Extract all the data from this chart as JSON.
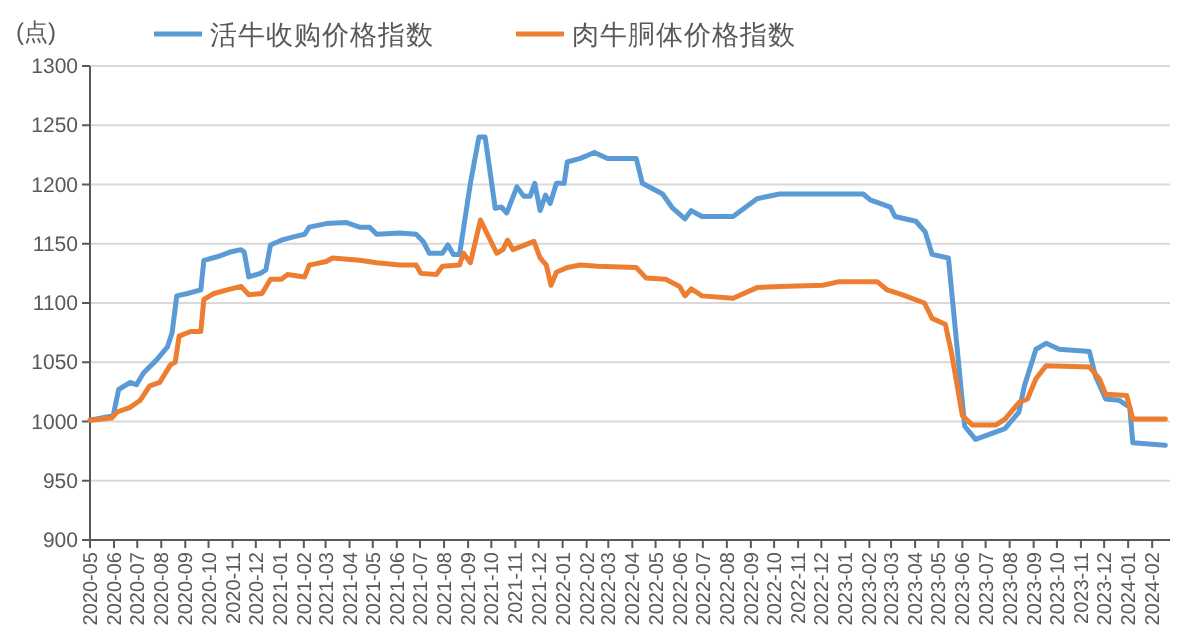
{
  "chart_data": {
    "type": "line",
    "ylabel": "(点)",
    "legend": "top",
    "grid": "y",
    "marker": "none",
    "line_style": "solid",
    "xlim": [
      "2020-05-01",
      "2024-02-24"
    ],
    "ylim": [
      900,
      1300
    ],
    "yticks": [
      900,
      950,
      1000,
      1050,
      1100,
      1150,
      1200,
      1250,
      1300
    ],
    "xticks": [
      "2020-05",
      "2020-06",
      "2020-07",
      "2020-08",
      "2020-09",
      "2020-10",
      "2020-11",
      "2020-12",
      "2021-01",
      "2021-02",
      "2021-03",
      "2021-04",
      "2021-05",
      "2021-06",
      "2021-07",
      "2021-08",
      "2021-09",
      "2021-10",
      "2021-11",
      "2021-12",
      "2022-01",
      "2022-02",
      "2022-03",
      "2022-04",
      "2022-05",
      "2022-06",
      "2022-07",
      "2022-08",
      "2022-09",
      "2022-10",
      "2022-11",
      "2022-12",
      "2023-01",
      "2023-02",
      "2023-03",
      "2023-04",
      "2023-05",
      "2023-06",
      "2023-07",
      "2023-08",
      "2023-09",
      "2023-10",
      "2023-11",
      "2023-12",
      "2024-01",
      "2024-02"
    ],
    "series": [
      {
        "name": "活牛收购价格指数",
        "color": "#5b9bd5",
        "x": [
          "2020-05-01",
          "2020-05-31",
          "2020-06-07",
          "2020-06-22",
          "2020-06-30",
          "2020-07-09",
          "2020-07-26",
          "2020-08-09",
          "2020-08-15",
          "2020-08-21",
          "2020-09-04",
          "2020-09-21",
          "2020-09-25",
          "2020-10-12",
          "2020-10-29",
          "2020-11-12",
          "2020-11-16",
          "2020-11-22",
          "2020-12-07",
          "2020-12-14",
          "2020-12-20",
          "2021-01-03",
          "2021-01-20",
          "2021-02-02",
          "2021-02-08",
          "2021-03-02",
          "2021-03-27",
          "2021-04-14",
          "2021-04-27",
          "2021-05-06",
          "2021-06-05",
          "2021-06-26",
          "2021-07-05",
          "2021-07-13",
          "2021-07-30",
          "2021-08-06",
          "2021-08-13",
          "2021-08-21",
          "2021-09-04",
          "2021-09-15",
          "2021-09-23",
          "2021-10-06",
          "2021-10-14",
          "2021-10-21",
          "2021-11-03",
          "2021-11-12",
          "2021-11-20",
          "2021-11-26",
          "2021-12-03",
          "2021-12-10",
          "2021-12-16",
          "2021-12-24",
          "2022-01-03",
          "2022-01-07",
          "2022-01-24",
          "2022-02-11",
          "2022-02-28",
          "2022-04-06",
          "2022-04-14",
          "2022-05-10",
          "2022-05-23",
          "2022-06-08",
          "2022-06-16",
          "2022-06-30",
          "2022-08-09",
          "2022-09-09",
          "2022-10-08",
          "2023-01-24",
          "2023-02-02",
          "2023-02-28",
          "2023-03-06",
          "2023-04-02",
          "2023-04-14",
          "2023-04-23",
          "2023-05-14",
          "2023-06-04",
          "2023-06-18",
          "2023-07-26",
          "2023-08-13",
          "2023-08-20",
          "2023-09-04",
          "2023-09-17",
          "2023-10-04",
          "2023-11-12",
          "2023-11-20",
          "2023-12-03",
          "2023-12-20",
          "2024-01-03",
          "2024-01-07",
          "2024-02-18"
        ],
        "values": [
          1001,
          1005,
          1027,
          1033,
          1031,
          1041,
          1052,
          1063,
          1075,
          1106,
          1108,
          1111,
          1136,
          1139,
          1143,
          1145,
          1143,
          1122,
          1125,
          1128,
          1149,
          1153,
          1156,
          1158,
          1164,
          1167,
          1168,
          1164,
          1164,
          1158,
          1159,
          1158,
          1152,
          1142,
          1142,
          1149,
          1141,
          1141,
          1201,
          1240,
          1240,
          1180,
          1181,
          1176,
          1198,
          1190,
          1190,
          1201,
          1178,
          1191,
          1184,
          1201,
          1201,
          1219,
          1222,
          1227,
          1222,
          1222,
          1201,
          1192,
          1180,
          1171,
          1178,
          1173,
          1173,
          1188,
          1192,
          1192,
          1187,
          1181,
          1173,
          1169,
          1160,
          1141,
          1138,
          996,
          985,
          994,
          1008,
          1030,
          1061,
          1066,
          1061,
          1059,
          1038,
          1019,
          1018,
          1012,
          982,
          980
        ]
      },
      {
        "name": "肉牛胴体价格指数",
        "color": "#ed7d31",
        "x": [
          "2020-05-01",
          "2020-05-29",
          "2020-06-05",
          "2020-06-22",
          "2020-07-05",
          "2020-07-17",
          "2020-07-30",
          "2020-08-13",
          "2020-08-19",
          "2020-08-24",
          "2020-09-08",
          "2020-09-21",
          "2020-09-25",
          "2020-10-08",
          "2020-10-25",
          "2020-11-12",
          "2020-11-22",
          "2020-12-09",
          "2020-12-20",
          "2021-01-03",
          "2021-01-11",
          "2021-02-02",
          "2021-02-08",
          "2021-03-02",
          "2021-03-10",
          "2021-04-14",
          "2021-05-06",
          "2021-06-05",
          "2021-06-26",
          "2021-07-02",
          "2021-07-22",
          "2021-07-30",
          "2021-08-21",
          "2021-08-26",
          "2021-09-04",
          "2021-09-17",
          "2021-10-08",
          "2021-10-16",
          "2021-10-22",
          "2021-10-29",
          "2021-11-25",
          "2021-12-03",
          "2021-12-11",
          "2021-12-17",
          "2021-12-24",
          "2022-01-07",
          "2022-01-24",
          "2022-02-15",
          "2022-04-06",
          "2022-04-19",
          "2022-05-14",
          "2022-06-01",
          "2022-06-08",
          "2022-06-16",
          "2022-06-30",
          "2022-08-09",
          "2022-09-09",
          "2022-10-08",
          "2022-12-03",
          "2022-12-24",
          "2023-02-11",
          "2023-02-24",
          "2023-03-15",
          "2023-04-13",
          "2023-04-23",
          "2023-05-10",
          "2023-05-18",
          "2023-06-01",
          "2023-06-14",
          "2023-07-14",
          "2023-07-26",
          "2023-08-13",
          "2023-08-24",
          "2023-09-04",
          "2023-09-17",
          "2023-11-12",
          "2023-11-25",
          "2023-12-03",
          "2023-12-30",
          "2024-01-07",
          "2024-02-18"
        ],
        "values": [
          1001,
          1003,
          1008,
          1012,
          1018,
          1030,
          1033,
          1048,
          1050,
          1072,
          1076,
          1076,
          1103,
          1108,
          1111,
          1114,
          1107,
          1108,
          1120,
          1120,
          1124,
          1122,
          1132,
          1135,
          1138,
          1136,
          1134,
          1132,
          1132,
          1125,
          1124,
          1131,
          1132,
          1142,
          1134,
          1170,
          1142,
          1145,
          1153,
          1145,
          1152,
          1138,
          1132,
          1115,
          1126,
          1130,
          1132,
          1131,
          1130,
          1121,
          1120,
          1114,
          1106,
          1112,
          1106,
          1104,
          1113,
          1114,
          1115,
          1118,
          1118,
          1111,
          1107,
          1100,
          1087,
          1082,
          1058,
          1005,
          997,
          997,
          1002,
          1016,
          1019,
          1036,
          1047,
          1046,
          1036,
          1023,
          1022,
          1002,
          1002
        ]
      }
    ]
  }
}
